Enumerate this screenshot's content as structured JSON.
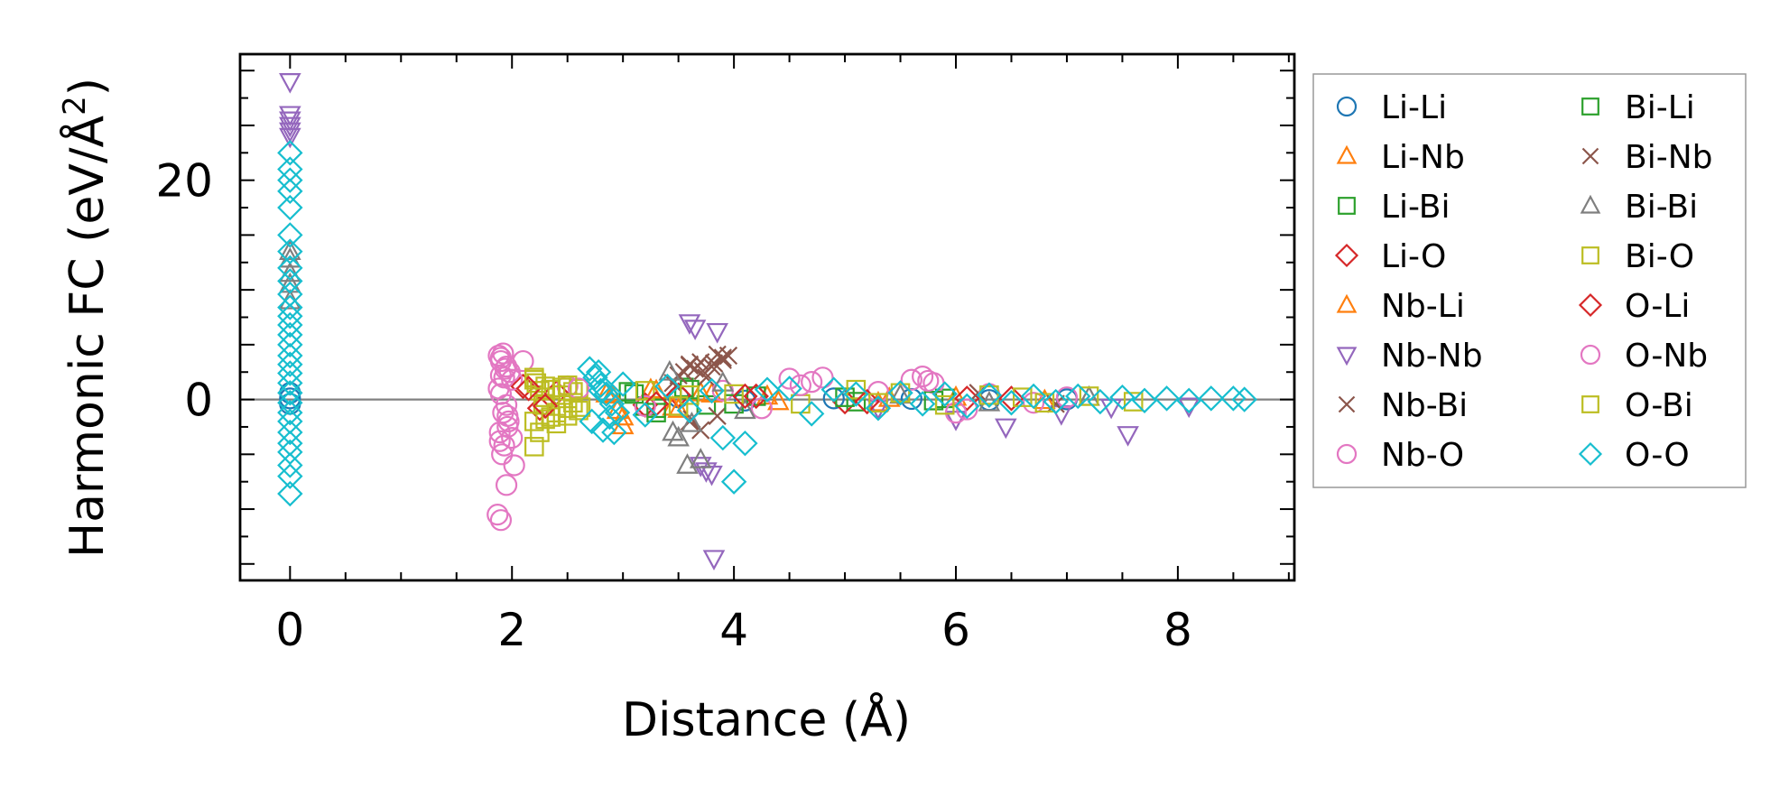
{
  "chart_data": {
    "type": "scatter",
    "title": "",
    "xlabel": "Distance (Å)",
    "ylabel_main": "Harmonic FC (eV/Å",
    "ylabel_sup": "2",
    "ylabel_close": ")",
    "xlim": [
      -0.45,
      9.05
    ],
    "ylim": [
      -16.5,
      31.5
    ],
    "xticks": [
      0,
      2,
      4,
      6,
      8
    ],
    "yticks": [
      0,
      20
    ],
    "xtick_labels": [
      "0",
      "2",
      "4",
      "6",
      "8"
    ],
    "ytick_labels": [
      "0",
      "20"
    ],
    "grid": false,
    "legend_position": "right",
    "zero_line": true,
    "series": [
      {
        "name": "Li-Li",
        "marker": "circle",
        "color": "#1f77b4",
        "x": [
          0,
          0,
          0,
          3.5,
          4.1,
          4.9,
          5.6,
          6.3,
          7.0
        ],
        "y": [
          0.6,
          -0.4,
          0.1,
          0.2,
          -0.1,
          0.1,
          0.05,
          -0.05,
          0.02
        ]
      },
      {
        "name": "Li-Nb",
        "marker": "triangle-up",
        "color": "#ff7f0e",
        "x": [
          2.85,
          2.95,
          3.0,
          3.3,
          3.5,
          3.7,
          4.3,
          5.3,
          6.0,
          6.8
        ],
        "y": [
          0.5,
          -1.0,
          -2.4,
          0.8,
          -0.9,
          0.6,
          0.3,
          -0.3,
          0.2,
          -0.1
        ]
      },
      {
        "name": "Li-Bi",
        "marker": "square",
        "color": "#2ca02c",
        "x": [
          3.05,
          3.2,
          3.3,
          3.55,
          3.75,
          4.2,
          5.1,
          5.9
        ],
        "y": [
          0.7,
          -0.6,
          -1.2,
          1.1,
          -0.5,
          0.3,
          -0.2,
          0.1
        ]
      },
      {
        "name": "Li-O",
        "marker": "diamond",
        "color": "#d62728",
        "x": [
          2.1,
          2.25,
          2.4,
          3.2,
          3.5,
          4.2,
          5.0,
          6.1
        ],
        "y": [
          1.2,
          -0.8,
          0.6,
          -0.5,
          0.4,
          0.3,
          -0.2,
          0.1
        ]
      },
      {
        "name": "Nb-Li",
        "marker": "triangle-up",
        "color": "#ff7f0e",
        "x": [
          2.9,
          3.0,
          3.25,
          3.45,
          3.8,
          4.4,
          5.4
        ],
        "y": [
          0.4,
          -1.6,
          0.9,
          -0.7,
          0.5,
          -0.2,
          0.1
        ]
      },
      {
        "name": "Nb-Nb",
        "marker": "triangle-down",
        "color": "#9467bd",
        "x": [
          0,
          0,
          0,
          0,
          0,
          0,
          3.6,
          3.65,
          3.7,
          3.75,
          3.8,
          3.85,
          3.82,
          5.3,
          6.0,
          6.45,
          6.95,
          7.4,
          7.55,
          8.1
        ],
        "y": [
          29,
          26,
          25.5,
          25,
          24.5,
          24,
          7,
          6.5,
          -6,
          -6.5,
          -6.8,
          6.2,
          -14.5,
          -0.8,
          -1.8,
          -2.5,
          -1.3,
          -0.7,
          -3.2,
          -0.6
        ]
      },
      {
        "name": "Nb-Bi",
        "marker": "x",
        "color": "#8c564b",
        "x": [
          3.45,
          3.55,
          3.6,
          3.65,
          3.7,
          3.75,
          3.8,
          3.85,
          3.9,
          3.95,
          3.6,
          3.7,
          3.85,
          6.2,
          6.9
        ],
        "y": [
          1.5,
          2.5,
          3.2,
          2.8,
          3.4,
          2.0,
          3.0,
          4.1,
          3.6,
          4.0,
          -2.0,
          -2.8,
          -1.5,
          0.6,
          -0.4
        ]
      },
      {
        "name": "Nb-O",
        "marker": "circle",
        "color": "#e377c2",
        "x": [
          1.88,
          1.9,
          1.92,
          1.95,
          1.98,
          2.0,
          1.9,
          1.88,
          1.9,
          1.95,
          1.92,
          1.97,
          1.89,
          1.93,
          2.0,
          1.91,
          1.95,
          1.87,
          1.9,
          2.02,
          1.94,
          1.96,
          2.1,
          2.5,
          3.2,
          3.9,
          4.25,
          4.5,
          4.7,
          4.8,
          5.3,
          5.6,
          5.7,
          5.8,
          6.0,
          6.3,
          6.7,
          7.0
        ],
        "y": [
          4.0,
          3.5,
          4.2,
          3.0,
          2.5,
          1.8,
          2.2,
          1.0,
          0.5,
          -0.5,
          -1.2,
          -2.0,
          -3.0,
          -4.2,
          -3.5,
          -5.0,
          -7.8,
          -10.5,
          -11.0,
          -6.0,
          2.8,
          -2.5,
          3.5,
          1.2,
          -0.6,
          0.8,
          -0.8,
          1.9,
          1.6,
          2.0,
          0.7,
          1.8,
          2.1,
          1.5,
          -1.2,
          0.5,
          -0.3,
          0.2
        ]
      },
      {
        "name": "Bi-Li",
        "marker": "square",
        "color": "#2ca02c",
        "x": [
          3.1,
          3.3,
          3.6,
          4.0,
          5.0,
          5.8
        ],
        "y": [
          0.5,
          -0.8,
          0.9,
          -0.4,
          0.2,
          -0.1
        ]
      },
      {
        "name": "Bi-Nb",
        "marker": "x",
        "color": "#8c564b",
        "x": [
          3.5,
          3.6,
          3.72,
          3.82,
          3.9,
          3.62
        ],
        "y": [
          2.2,
          3.1,
          2.6,
          3.3,
          3.8,
          -1.8
        ]
      },
      {
        "name": "Bi-Bi",
        "marker": "triangle-up",
        "color": "#7f7f7f",
        "x": [
          0,
          0,
          0,
          0,
          0,
          3.42,
          3.45,
          3.5,
          3.58,
          3.62,
          3.7,
          3.9,
          4.1,
          5.5,
          6.3,
          7.2
        ],
        "y": [
          13.5,
          12.8,
          11.5,
          10.5,
          9.0,
          2.5,
          -3.0,
          -3.5,
          -6.0,
          -2.2,
          -5.5,
          1.5,
          -1.0,
          0.4,
          -0.3,
          0.2
        ]
      },
      {
        "name": "Bi-O",
        "marker": "square",
        "color": "#bcbd22",
        "x": [
          2.2,
          2.22,
          2.25,
          2.28,
          2.3,
          2.35,
          2.4,
          2.45,
          2.5,
          2.55,
          2.6,
          2.2,
          2.25,
          2.3,
          2.4,
          2.5,
          2.6,
          2.2,
          2.3,
          2.45,
          2.55,
          3.2,
          3.5,
          4.0,
          4.6,
          5.1,
          5.5,
          5.9,
          6.3,
          6.8,
          7.2,
          7.6
        ],
        "y": [
          2.0,
          1.5,
          0.8,
          -0.5,
          1.2,
          0.9,
          -1.2,
          1.1,
          -0.8,
          0.7,
          1.0,
          -2.0,
          -3.0,
          -1.8,
          -2.2,
          -1.5,
          -1.0,
          -4.3,
          0.2,
          0.4,
          -0.3,
          0.8,
          -0.6,
          0.5,
          -0.4,
          0.9,
          0.6,
          -0.5,
          0.4,
          -0.3,
          0.3,
          -0.2
        ]
      },
      {
        "name": "O-Li",
        "marker": "diamond",
        "color": "#d62728",
        "x": [
          2.15,
          2.3,
          3.3,
          4.1,
          5.2,
          6.5
        ],
        "y": [
          1.0,
          -0.6,
          -0.4,
          0.3,
          -0.2,
          0.1
        ]
      },
      {
        "name": "O-Nb",
        "marker": "circle",
        "color": "#e377c2",
        "x": [
          1.9,
          1.93,
          1.96,
          1.89,
          2.6,
          4.6,
          5.75,
          6.1
        ],
        "y": [
          3.8,
          2.0,
          -1.5,
          -3.8,
          1.0,
          1.3,
          1.7,
          -0.9
        ]
      },
      {
        "name": "O-Bi",
        "marker": "square",
        "color": "#bcbd22",
        "x": [
          2.2,
          2.35,
          2.5,
          2.62,
          3.6,
          5.3,
          6.6
        ],
        "y": [
          1.8,
          -1.6,
          1.3,
          -0.7,
          0.4,
          -0.3,
          0.2
        ]
      },
      {
        "name": "O-O",
        "marker": "diamond",
        "color": "#17becf",
        "x": [
          0,
          0,
          0,
          0,
          0,
          0,
          0,
          0,
          0,
          0,
          0,
          0,
          0,
          0,
          0,
          0,
          0,
          0,
          0,
          0,
          0,
          0,
          0,
          0,
          0,
          0,
          0,
          0,
          0,
          2.7,
          2.75,
          2.8,
          2.85,
          2.9,
          2.95,
          2.72,
          2.82,
          2.92,
          2.78,
          2.88,
          2.8,
          3.0,
          3.2,
          3.4,
          3.6,
          3.8,
          3.9,
          4.0,
          4.1,
          4.3,
          4.5,
          4.7,
          4.9,
          5.1,
          5.3,
          5.5,
          5.7,
          5.9,
          6.1,
          6.3,
          6.5,
          6.7,
          6.9,
          7.1,
          7.3,
          7.5,
          7.7,
          7.9,
          8.1,
          8.3,
          8.5,
          8.6
        ],
        "y": [
          22.5,
          21.0,
          20.0,
          19.0,
          17.5,
          15.0,
          13.5,
          12.0,
          10.8,
          9.6,
          8.4,
          7.6,
          6.8,
          5.9,
          5.0,
          4.0,
          3.2,
          2.4,
          1.5,
          0.6,
          -0.3,
          -1.2,
          -2.0,
          -3.0,
          -4.0,
          -4.8,
          -6.0,
          -7.0,
          -8.6,
          2.8,
          2.0,
          1.3,
          0.5,
          -0.4,
          -1.2,
          -2.0,
          -2.8,
          -3.0,
          2.5,
          -1.6,
          0.8,
          1.4,
          -1.4,
          1.2,
          -1.0,
          0.8,
          -3.5,
          -7.5,
          -4.0,
          0.9,
          1.0,
          -1.3,
          0.9,
          0.5,
          -0.8,
          0.6,
          -0.4,
          0.5,
          -0.6,
          0.4,
          -0.3,
          0.3,
          -0.2,
          0.3,
          -0.2,
          0.2,
          -0.1,
          0.1,
          -0.1,
          0.1,
          0.1,
          0.0
        ]
      }
    ]
  }
}
